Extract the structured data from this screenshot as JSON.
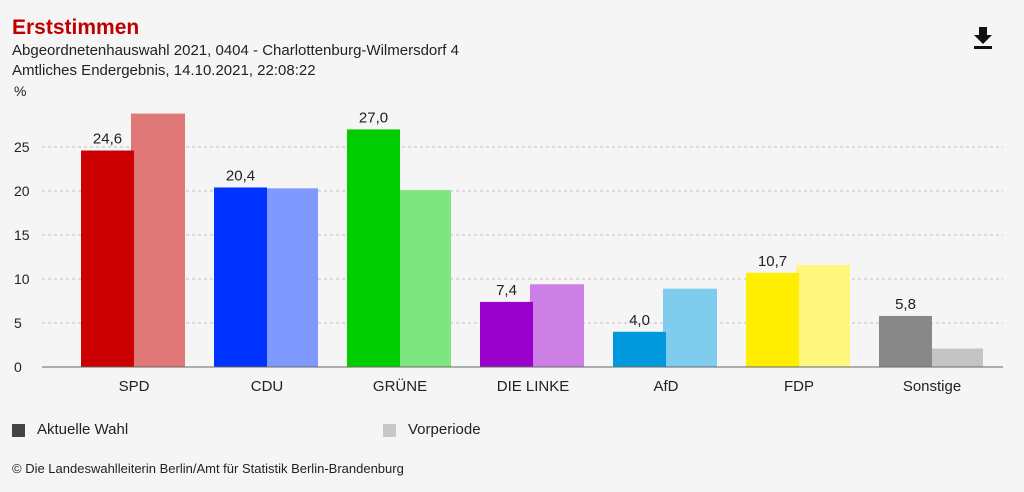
{
  "header": {
    "title": "Erststimmen",
    "subtitle_line1": "Abgeordnetenhauswahl 2021, 0404 - Charlottenburg-Wilmersdorf 4",
    "subtitle_line2": "Amtliches Endergebnis, 14.10.2021, 22:08:22",
    "download_icon": "download-icon"
  },
  "legend": {
    "current_label": "Aktuelle Wahl",
    "current_color": "#444444",
    "previous_label": "Vorperiode",
    "previous_color": "#c8c8c8"
  },
  "footer": {
    "credit": "© Die Landeswahlleiterin Berlin/Amt für Statistik Berlin-Brandenburg"
  },
  "chart_data": {
    "type": "bar",
    "ylabel": "%",
    "ylim": [
      0,
      30
    ],
    "yticks": [
      0,
      5,
      10,
      15,
      20,
      25
    ],
    "grid": true,
    "legend_position": "bottom",
    "categories": [
      "SPD",
      "CDU",
      "GRÜNE",
      "DIE LINKE",
      "AfD",
      "FDP",
      "Sonstige"
    ],
    "series": [
      {
        "name": "Aktuelle Wahl",
        "values": [
          24.6,
          20.4,
          27.0,
          7.4,
          4.0,
          10.7,
          5.8
        ],
        "labels": [
          "24,6",
          "20,4",
          "27,0",
          "7,4",
          "4,0",
          "10,7",
          "5,8"
        ]
      },
      {
        "name": "Vorperiode",
        "values": [
          28.8,
          20.3,
          20.1,
          9.4,
          8.9,
          11.6,
          2.1
        ]
      }
    ],
    "colors_current": [
      "#cc0000",
      "#0033ff",
      "#00cc00",
      "#9900cc",
      "#0099dd",
      "#ffee00",
      "#888888"
    ],
    "colors_previous": [
      "#e07878",
      "#7f99ff",
      "#7fe57f",
      "#cc7fe5",
      "#7fccee",
      "#fff67f",
      "#c4c4c4"
    ]
  }
}
